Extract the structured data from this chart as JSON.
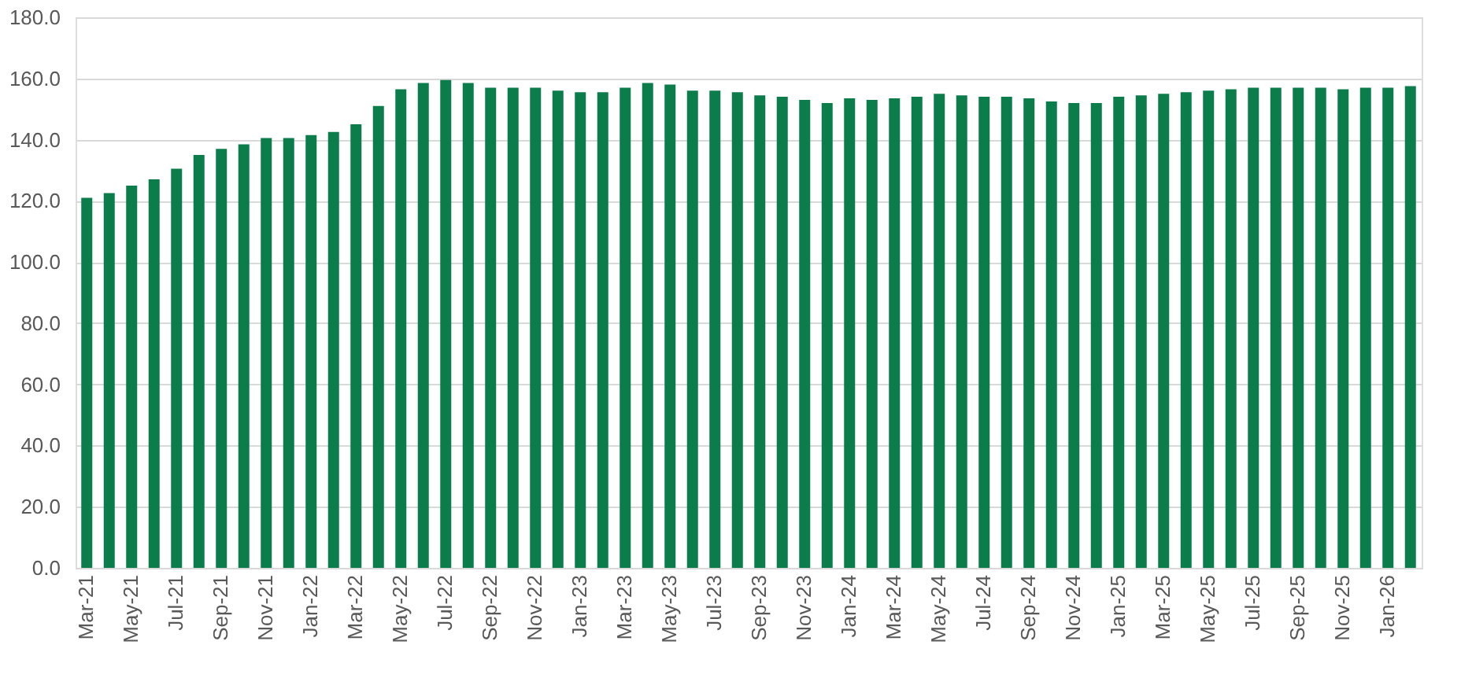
{
  "chart_data": {
    "type": "bar",
    "categories": [
      "Mar-21",
      null,
      "May-21",
      null,
      "Jul-21",
      null,
      "Sep-21",
      null,
      "Nov-21",
      null,
      "Jan-22",
      null,
      "Mar-22",
      null,
      "May-22",
      null,
      "Jul-22",
      null,
      "Sep-22",
      null,
      "Nov-22",
      null,
      "Jan-23",
      null,
      "Mar-23",
      null,
      "May-23",
      null,
      "Jul-23",
      null,
      "Sep-23",
      null,
      "Nov-23",
      null,
      "Jan-24",
      null,
      "Mar-24",
      null,
      "May-24",
      null,
      "Jul-24",
      null,
      "Sep-24",
      null,
      "Nov-24",
      null,
      "Jan-25",
      null,
      "Mar-25",
      null,
      "May-25",
      null,
      "Jul-25",
      null,
      "Sep-25",
      null,
      "Nov-25",
      null,
      "Jan-26",
      null
    ],
    "values": [
      121,
      122.5,
      125,
      127,
      130.5,
      135,
      137,
      138.5,
      140.5,
      140.5,
      141.5,
      142.5,
      145,
      151,
      156.5,
      158.5,
      159.5,
      158.5,
      157,
      157,
      157,
      156,
      155.5,
      155.5,
      157,
      158.5,
      158,
      156,
      156,
      155.5,
      154.5,
      154,
      153,
      152,
      153.5,
      153,
      153.5,
      154,
      155,
      154.5,
      154,
      154,
      153.5,
      152.5,
      152,
      152,
      154,
      154.5,
      155,
      155.5,
      156,
      156.5,
      157,
      157,
      157,
      157,
      156.5,
      157,
      157,
      157.5
    ],
    "color": "#0b7d4b",
    "ylim": [
      0,
      180
    ],
    "yticks": [
      {
        "value": 0,
        "label": "0.0"
      },
      {
        "value": 20,
        "label": "20.0"
      },
      {
        "value": 40,
        "label": "40.0"
      },
      {
        "value": 60,
        "label": "60.0"
      },
      {
        "value": 80,
        "label": "80.0"
      },
      {
        "value": 100,
        "label": "100.0"
      },
      {
        "value": 120,
        "label": "120.0"
      },
      {
        "value": 140,
        "label": "140.0"
      },
      {
        "value": 160,
        "label": "160.0"
      },
      {
        "value": 180,
        "label": "180.0"
      }
    ],
    "grid": "y"
  }
}
